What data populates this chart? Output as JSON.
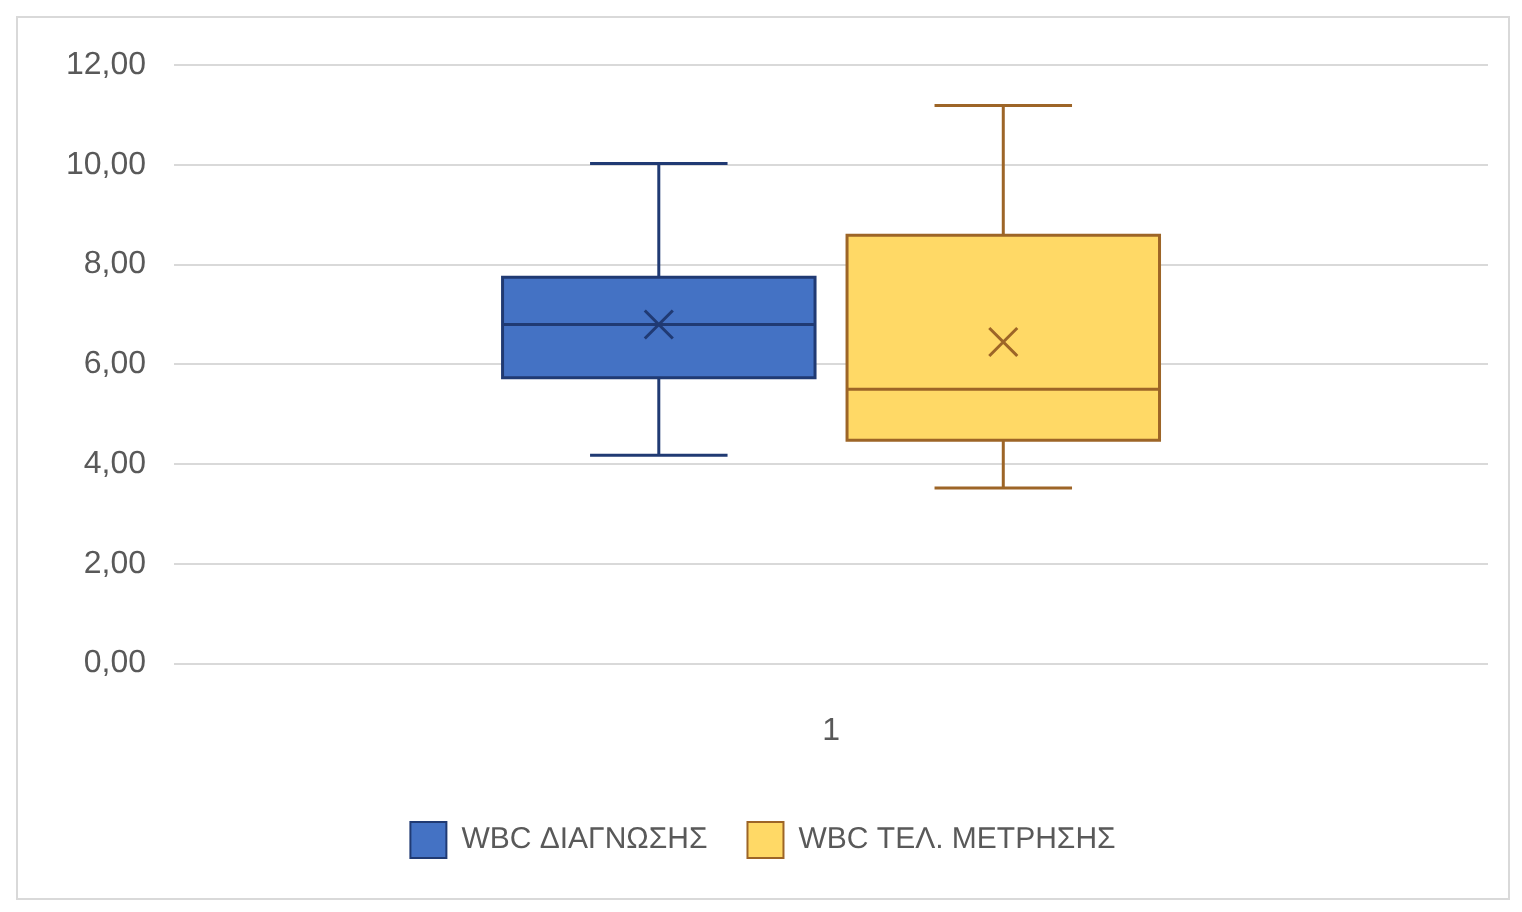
{
  "chart_data": {
    "type": "box",
    "categories": [
      "1"
    ],
    "series": [
      {
        "name": "WBC ΔΙΑΓΝΩΣΗΣ",
        "color": "#4472c4",
        "boxes": [
          {
            "low": 4.18,
            "q1": 5.73,
            "median": 6.8,
            "q3": 7.75,
            "high": 10.03,
            "mean": 6.8
          }
        ]
      },
      {
        "name": "WBC ΤΕΛ. ΜΕΤΡΗΣΗΣ",
        "color": "#ffd966",
        "boxes": [
          {
            "low": 3.52,
            "q1": 4.48,
            "median": 5.5,
            "q3": 8.59,
            "high": 11.19,
            "mean": 6.45
          }
        ]
      }
    ],
    "ylim": [
      0,
      12
    ],
    "yticks": [
      {
        "value": 0,
        "label": "0,00"
      },
      {
        "value": 2,
        "label": "2,00"
      },
      {
        "value": 4,
        "label": "4,00"
      },
      {
        "value": 6,
        "label": "6,00"
      },
      {
        "value": 8,
        "label": "8,00"
      },
      {
        "value": 10,
        "label": "10,00"
      },
      {
        "value": 12,
        "label": "12,00"
      }
    ],
    "grid": "y",
    "legend": "bottom",
    "marker": "cross"
  }
}
